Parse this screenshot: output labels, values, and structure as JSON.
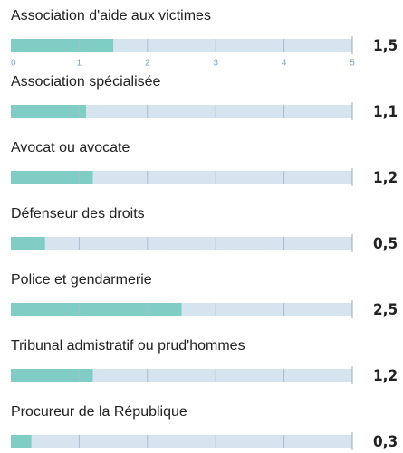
{
  "chart_data": {
    "type": "bar",
    "orientation": "horizontal",
    "categories": [
      "Association d'aide aux victimes",
      "Association spécialisée",
      "Avocat ou avocate",
      "Défenseur des droits",
      "Police et gendarmerie",
      "Tribunal admistratif ou prud'hommes",
      "Procureur de la République"
    ],
    "values": [
      1.5,
      1.1,
      1.2,
      0.5,
      2.5,
      1.2,
      0.3
    ],
    "value_labels": [
      "1,5",
      "1,1",
      "1,2",
      "0,5",
      "2,5",
      "1,2",
      "0,3"
    ],
    "color": "#7fcdc4",
    "track_color": "#d6e4ef",
    "xlim": [
      0,
      5
    ],
    "xticks": [
      0,
      1,
      2,
      3,
      4,
      5
    ]
  }
}
